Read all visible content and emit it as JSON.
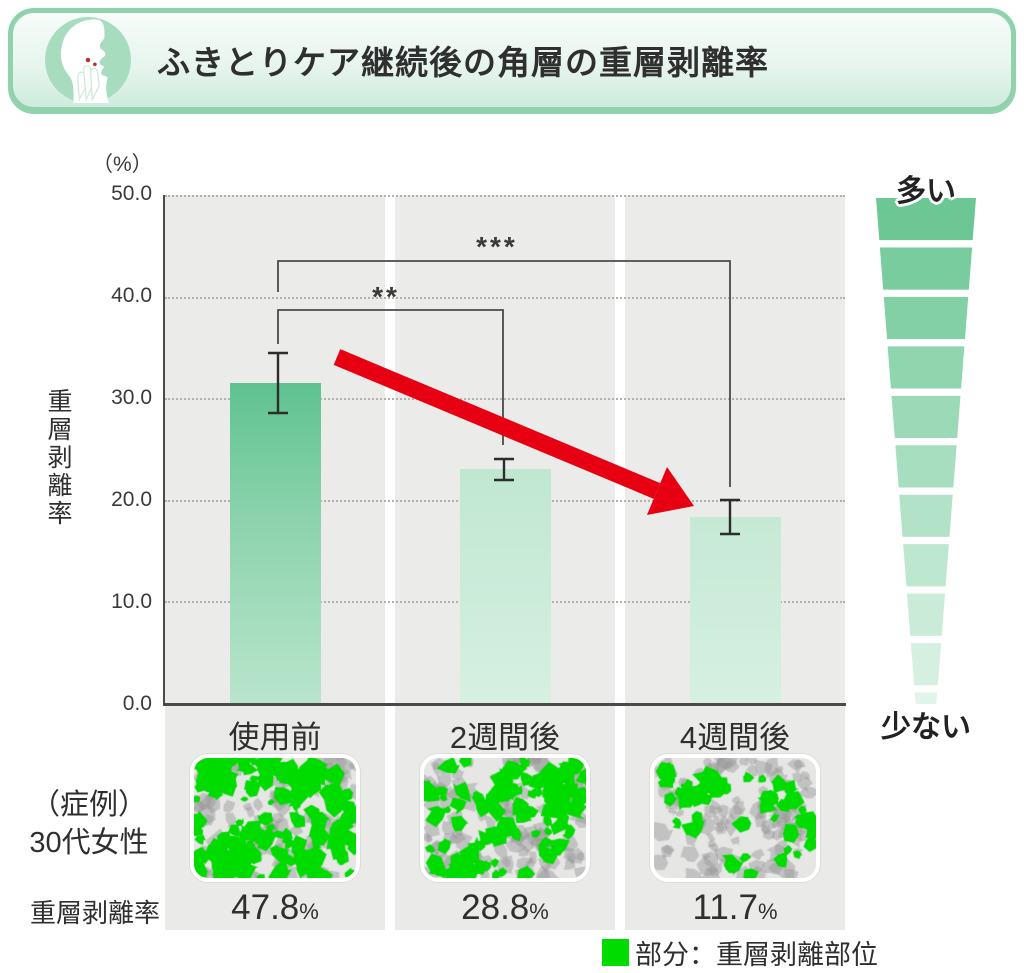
{
  "header": {
    "title": "ふきとりケア継続後の角層の重層剥離率",
    "icon": "face-profile-with-hand"
  },
  "chart_data": {
    "type": "bar",
    "title": "ふきとりケア継続後の角層の重層剥離率",
    "unit": "（%）",
    "ylabel": "重層剥離率",
    "ylim": [
      0,
      50
    ],
    "yticks": [
      "50.0",
      "40.0",
      "30.0",
      "20.0",
      "10.0",
      "0.0"
    ],
    "grid": "dotted-horizontal",
    "categories": [
      "使用前",
      "2週間後",
      "4週間後"
    ],
    "values": [
      31.5,
      23.0,
      18.3
    ],
    "error_bars": [
      3.0,
      1.0,
      1.7
    ],
    "significance": [
      {
        "pair": "使用前-2週間後",
        "label": "**"
      },
      {
        "pair": "使用前-4週間後",
        "label": "***"
      }
    ],
    "trend_arrow": "decreasing",
    "scale_legend": {
      "top": "多い",
      "bottom": "少ない"
    }
  },
  "case_study": {
    "label_line1": "（症例）",
    "label_line2": "30代女性",
    "row_label": "重層剥離率",
    "values": [
      "47.8",
      "28.8",
      "11.7"
    ],
    "percent_sign": "%"
  },
  "legend": {
    "label": "部分：重層剥離部位"
  },
  "colors": {
    "header_border": "#8fd2ab",
    "bar_dark_green": "#5fc290",
    "bar_light_green": "#d6f0e1",
    "plot_bg": "#ebebe9",
    "arrow_red": "#e60012",
    "highlight_green": "#00db00",
    "axis": "#4a4a48"
  }
}
